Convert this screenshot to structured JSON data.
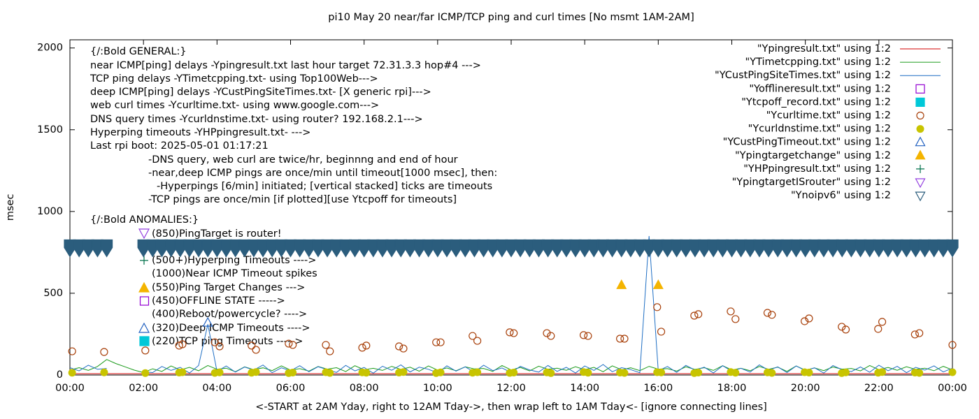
{
  "chart_data": {
    "type": "line",
    "title": "pi10 May 20  near/far ICMP/TCP ping and curl times [No msmt 1AM-2AM]",
    "xlabel": "<-START at 2AM Yday, right to 12AM Tday->, then wrap left to 1AM Tday<- [ignore connecting lines]",
    "ylabel": "msec",
    "xlim": [
      0,
      24
    ],
    "ylim": [
      0,
      2050
    ],
    "xticks": [
      {
        "value": 0,
        "label": "00:00"
      },
      {
        "value": 2,
        "label": "02:00"
      },
      {
        "value": 4,
        "label": "04:00"
      },
      {
        "value": 6,
        "label": "06:00"
      },
      {
        "value": 8,
        "label": "08:00"
      },
      {
        "value": 10,
        "label": "10:00"
      },
      {
        "value": 12,
        "label": "12:00"
      },
      {
        "value": 14,
        "label": "14:00"
      },
      {
        "value": 16,
        "label": "16:00"
      },
      {
        "value": 18,
        "label": "18:00"
      },
      {
        "value": 20,
        "label": "20:00"
      },
      {
        "value": 22,
        "label": "22:00"
      },
      {
        "value": 24,
        "label": "00:00"
      }
    ],
    "yticks": [
      0,
      500,
      1000,
      1500,
      2000
    ],
    "legend": "top-right",
    "x": [
      0,
      0.25,
      0.5,
      0.75,
      1,
      1.25,
      1.5,
      1.75,
      2,
      2.25,
      2.5,
      2.75,
      3,
      3.25,
      3.5,
      3.75,
      4,
      4.25,
      4.5,
      4.75,
      5,
      5.25,
      5.5,
      5.75,
      6,
      6.25,
      6.5,
      6.75,
      7,
      7.25,
      7.5,
      7.75,
      8,
      8.25,
      8.5,
      8.75,
      9,
      9.25,
      9.5,
      9.75,
      10,
      10.25,
      10.5,
      10.75,
      11,
      11.25,
      11.5,
      11.75,
      12,
      12.25,
      12.5,
      12.75,
      13,
      13.25,
      13.5,
      13.75,
      14,
      14.25,
      14.5,
      14.75,
      15,
      15.25,
      15.5,
      15.75,
      16,
      16.25,
      16.5,
      16.75,
      17,
      17.25,
      17.5,
      17.75,
      18,
      18.25,
      18.5,
      18.75,
      19,
      19.25,
      19.5,
      19.75,
      20,
      20.25,
      20.5,
      20.75,
      21,
      21.25,
      21.5,
      21.75,
      22,
      22.25,
      22.5,
      22.75,
      23,
      23.25,
      23.5,
      23.75,
      24
    ],
    "annotations": [
      "{/:Bold GENERAL:}",
      "near ICMP[ping] delays -Ypingresult.txt last hour target 72.31.3.3 hop#4 --->",
      "TCP ping delays -YTimetcpping.txt- using Top100Web--->",
      "deep ICMP[ping] delays -YCustPingSiteTimes.txt- [X generic rpi]--->",
      "web curl times -Ycurltime.txt- using www.google.com--->",
      "DNS query times -Ycurldnstime.txt- using router? 192.168.2.1--->",
      "Hyperping timeouts -YHPpingresult.txt- --->",
      "Last rpi boot: 2025-05-01 01:17:21",
      "-DNS query, web curl are twice/hr, beginnng and end of hour",
      "-near,deep ICMP pings are once/min until timeout[1000 msec], then:",
      "-Hyperpings [6/min] initiated; [vertical stacked] ticks are timeouts",
      "-TCP pings are once/min [if plotted][use Ytcpoff for timeouts]",
      "{/:Bold ANOMALIES:}",
      "(850)PingTarget is router!",
      "(500+)Hyperping Timeouts ---->",
      "(1000)Near ICMP Timeout spikes",
      "(550)Ping Target Changes --->",
      "(450)OFFLINE STATE ----->",
      "(400)Reboot/powercycle? ---->",
      "(320)Deep ICMP Timeouts ---->",
      "(220)TCP ping Timeouts ----->"
    ],
    "series": [
      {
        "name": "\"Ypingresult.txt\" using 1:2",
        "color": "#d40000",
        "marker": "line",
        "x": [
          0,
          24
        ],
        "values": [
          8,
          8
        ]
      },
      {
        "name": "\"YTimetcpping.txt\" using 1:2",
        "color": "#1a9a1a",
        "marker": "line",
        "values": [
          30,
          45,
          28,
          52,
          95,
          70,
          50,
          30,
          15,
          38,
          22,
          55,
          31,
          47,
          26,
          58,
          35,
          42,
          20,
          50,
          33,
          44,
          27,
          56,
          30,
          39,
          24,
          52,
          36,
          45,
          21,
          57,
          32,
          41,
          28,
          53,
          34,
          48,
          23,
          55,
          30,
          43,
          26,
          50,
          37,
          40,
          22,
          58,
          31,
          46,
          25,
          54,
          35,
          42,
          29,
          51,
          33,
          47,
          20,
          56,
          32,
          44,
          27,
          53,
          36,
          39,
          24,
          50,
          34,
          45,
          28,
          57,
          31,
          41,
          26,
          52,
          35,
          48,
          22,
          55,
          30,
          43,
          27,
          49,
          36,
          40,
          25,
          58,
          33,
          46,
          29,
          51,
          34,
          42,
          26,
          53,
          31
        ]
      },
      {
        "name": "\"YCustPingSiteTimes.txt\" using 1:2",
        "color": "#1f6fc4",
        "marker": "line",
        "values": [
          45,
          25,
          60,
          35,
          40,
          null,
          null,
          null,
          20,
          15,
          52,
          28,
          47,
          12,
          58,
          310,
          22,
          55,
          18,
          49,
          30,
          61,
          14,
          44,
          26,
          57,
          20,
          51,
          33,
          16,
          59,
          25,
          46,
          11,
          54,
          29,
          62,
          19,
          48,
          35,
          13,
          56,
          24,
          50,
          17,
          60,
          27,
          43,
          15,
          53,
          31,
          18,
          58,
          22,
          47,
          12,
          55,
          28,
          64,
          20,
          45,
          33,
          14,
          850,
          26,
          52,
          16,
          59,
          30,
          48,
          13,
          57,
          24,
          41,
          18,
          62,
          29,
          50,
          15,
          55,
          27,
          44,
          12,
          58,
          32,
          21,
          49,
          17,
          60,
          26,
          53,
          14,
          47,
          30,
          56,
          19,
          42
        ]
      },
      {
        "name": "\"Yofflineresult.txt\" using 1:2",
        "color": "#9400d3",
        "marker": "square",
        "x": [],
        "values": []
      },
      {
        "name": "\"Ytcpoff_record.txt\" using 1:2",
        "color": "#00c8d8",
        "marker": "square-filled",
        "x": [],
        "values": []
      },
      {
        "name": "\"Ycurltime.txt\" using 1:2",
        "color": "#a8400a",
        "marker": "circle",
        "x": [
          0.06,
          0.93,
          2.05,
          2.97,
          3.06,
          3.94,
          4.07,
          4.94,
          5.06,
          5.95,
          6.06,
          6.96,
          7.07,
          7.95,
          8.06,
          8.95,
          9.07,
          9.96,
          10.08,
          10.95,
          11.08,
          11.96,
          12.07,
          12.97,
          13.08,
          13.97,
          14.09,
          14.96,
          15.08,
          15.97,
          16.08,
          16.98,
          17.09,
          17.97,
          18.1,
          18.97,
          19.09,
          19.98,
          20.1,
          20.99,
          21.1,
          21.98,
          22.09,
          22.98,
          23.1,
          24
        ],
        "values": [
          145,
          141,
          150,
          180,
          188,
          200,
          175,
          180,
          154,
          192,
          184,
          184,
          145,
          167,
          180,
          175,
          162,
          200,
          200,
          239,
          209,
          261,
          256,
          256,
          239,
          244,
          239,
          222,
          222,
          415,
          265,
          363,
          372,
          389,
          342,
          380,
          368,
          329,
          346,
          295,
          278,
          282,
          325,
          248,
          256,
          184
        ]
      },
      {
        "name": "\"Ycurldnstime.txt\" using 1:2",
        "color": "#c8c400",
        "marker": "dot",
        "x": [
          0.06,
          0.93,
          2.05,
          2.97,
          3.06,
          3.94,
          4.07,
          4.94,
          5.06,
          5.95,
          6.06,
          6.96,
          7.07,
          7.95,
          8.06,
          8.95,
          9.07,
          9.96,
          10.08,
          10.95,
          11.08,
          11.96,
          12.07,
          12.97,
          13.08,
          13.97,
          14.09,
          14.96,
          15.08,
          15.97,
          16.08,
          16.98,
          17.09,
          17.97,
          18.1,
          18.97,
          19.09,
          19.98,
          20.1,
          20.99,
          21.1,
          21.98,
          22.09,
          22.98,
          23.1,
          24
        ],
        "values": [
          14,
          16,
          12,
          15,
          17,
          13,
          16,
          14,
          18,
          12,
          15,
          17,
          13,
          16,
          14,
          15,
          18,
          12,
          16,
          14,
          17,
          13,
          15,
          16,
          12,
          18,
          14,
          15,
          13,
          17,
          16,
          12,
          15,
          18,
          14,
          16,
          13,
          17,
          15,
          12,
          16,
          14,
          18,
          15,
          13,
          17
        ]
      },
      {
        "name": "\"YCustPingTimeout.txt\" using 1:2",
        "color": "#2060c0",
        "marker": "triangle",
        "x": [
          3.75
        ],
        "values": [
          320
        ]
      },
      {
        "name": "\"Ypingtargetchange\" using 1:2",
        "color": "#f4b400",
        "marker": "triangle-filled",
        "x": [
          15,
          16
        ],
        "values": [
          550,
          550
        ]
      },
      {
        "name": "\"YHPpingresult.txt\" using 1:2",
        "color": "#00704a",
        "marker": "plus",
        "x": [],
        "values": []
      },
      {
        "name": "\"YpingtargetISrouter\" using 1:2",
        "color": "#9440e0",
        "marker": "down-triangle",
        "x": [],
        "values": []
      },
      {
        "name": "\"Ynoipv6\" using 1:2",
        "color": "#2b5d7d",
        "marker": "down-triangle",
        "values": [
          775,
          775,
          775,
          775,
          775,
          null,
          null,
          null,
          775,
          775,
          775,
          775,
          775,
          775,
          775,
          775,
          775,
          775,
          775,
          775,
          775,
          775,
          775,
          775,
          775,
          775,
          775,
          775,
          775,
          775,
          775,
          775,
          775,
          775,
          775,
          775,
          775,
          775,
          775,
          775,
          775,
          775,
          775,
          775,
          775,
          775,
          775,
          775,
          775,
          775,
          775,
          775,
          775,
          775,
          775,
          775,
          775,
          775,
          775,
          775,
          775,
          775,
          775,
          775,
          775,
          775,
          775,
          775,
          775,
          775,
          775,
          775,
          775,
          775,
          775,
          775,
          775,
          775,
          775,
          775,
          775,
          775,
          775,
          775,
          775,
          775,
          775,
          775,
          775,
          775,
          775,
          775,
          775,
          775,
          775,
          775,
          775
        ]
      }
    ]
  }
}
